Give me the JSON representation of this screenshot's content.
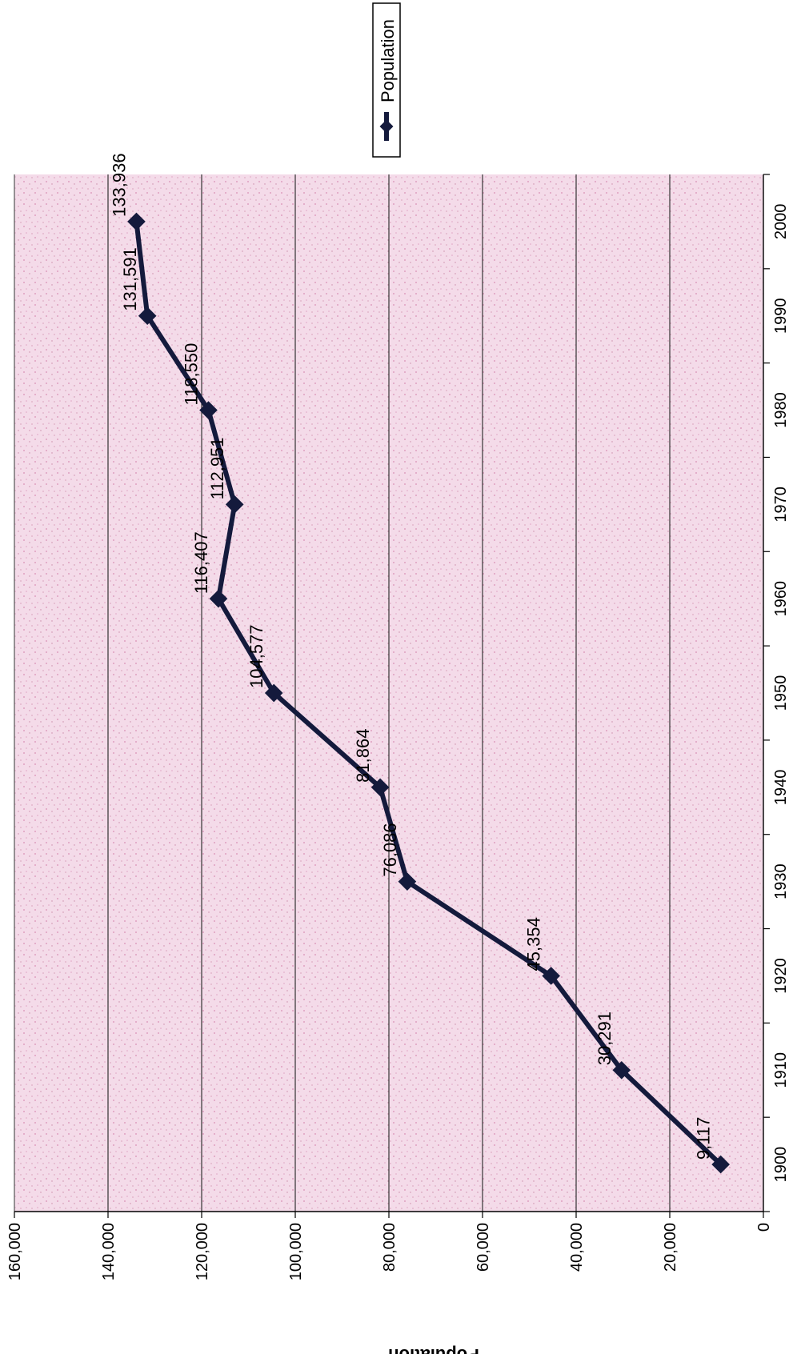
{
  "chart_data": {
    "type": "line",
    "x": [
      1900,
      1910,
      1920,
      1930,
      1940,
      1950,
      1960,
      1970,
      1980,
      1990,
      2000
    ],
    "series": [
      {
        "name": "Population",
        "values": [
          9117,
          30291,
          45354,
          76086,
          81864,
          104577,
          116407,
          112951,
          118550,
          131591,
          133936
        ],
        "labels": [
          "9,117",
          "30,291",
          "45,354",
          "76,086",
          "81,864",
          "104,577",
          "116,407",
          "112,951",
          "118,550",
          "131,591",
          "133,936"
        ]
      }
    ],
    "xlim": [
      1895,
      2005
    ],
    "ylim": [
      0,
      160000
    ],
    "y_ticks": [
      0,
      20000,
      40000,
      60000,
      80000,
      100000,
      120000,
      140000,
      160000
    ],
    "y_tick_labels": [
      "0",
      "20,000",
      "40,000",
      "60,000",
      "80,000",
      "100,000",
      "120,000",
      "140,000",
      "160,000"
    ],
    "x_tick_labels": [
      "1900",
      "1910",
      "1920",
      "1930",
      "1940",
      "1950",
      "1960",
      "1970",
      "1980",
      "1990",
      "2000"
    ],
    "ylabel": "Population",
    "xlabel": "",
    "title": "",
    "grid": true,
    "legend": "top-right",
    "orientation": "rotated 90° clockwise",
    "colors": {
      "line": "#141a3c",
      "plot_background": "#f3dcea",
      "grid": "#333333"
    }
  }
}
